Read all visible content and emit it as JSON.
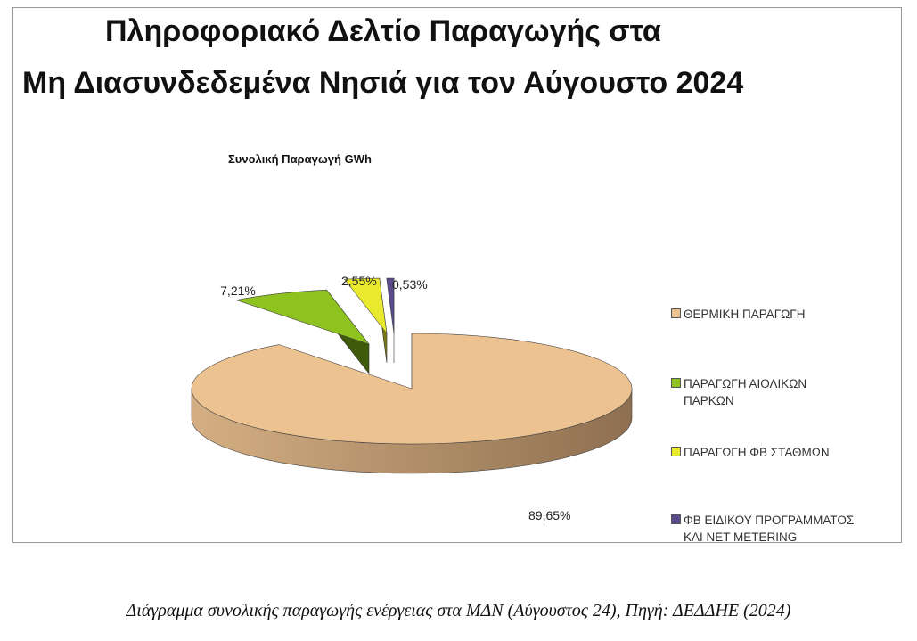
{
  "chart_data": {
    "type": "pie",
    "title": [
      "Πληροφοριακό Δελτίο Παραγωγής στα",
      "Μη Διασυνδεδεμένα Νησιά για τον Αύγουστο 2024"
    ],
    "subtitle": "Συνολική Παραγωγή GWh",
    "legend_position": "right",
    "slices": [
      {
        "name": "ΘΕΡΜΙΚΗ ΠΑΡΑΓΩΓΗ",
        "legend_lines": [
          "ΘΕΡΜΙΚΗ ΠΑΡΑΓΩΓΗ"
        ],
        "value": 89.65,
        "label": "89,65%",
        "color": "#EDC291",
        "side_color": "#8E6F50"
      },
      {
        "name": "ΠΑΡΑΓΩΓΗ ΑΙΟΛΙΚΩΝ ΠΑΡΚΩΝ",
        "legend_lines": [
          "ΠΑΡΑΓΩΓΗ ΑΙΟΛΙΚΩΝ",
          "ΠΑΡΚΩΝ"
        ],
        "value": 7.21,
        "label": "7,21%",
        "color": "#8DC21F",
        "side_color": "#3F5A0A"
      },
      {
        "name": "ΠΑΡΑΓΩΓΗ ΦΒ ΣΤΑΘΜΩΝ",
        "legend_lines": [
          "ΠΑΡΑΓΩΓΗ ΦΒ ΣΤΑΘΜΩΝ"
        ],
        "value": 2.55,
        "label": "2,55%",
        "color": "#E9E92D",
        "side_color": "#7A7A12"
      },
      {
        "name": "ΦΒ ΕΙΔΙΚΟΥ ΠΡΟΓΡΑΜΜΑΤΟΣ ΚΑΙ NET METERING",
        "legend_lines": [
          "ΦΒ ΕΙΔΙΚΟΥ ΠΡΟΓΡΑΜΜΑΤΟΣ",
          "ΚΑΙ NET METERING"
        ],
        "value": 0.53,
        "label": "0,53%",
        "color": "#5A4A8A",
        "side_color": "#2A1F4A"
      }
    ]
  },
  "caption": "Διάγραμμα συνολικής παραγωγής ενέργειας στα ΜΔΝ (Αύγουστος 24), Πηγή: ΔΕΔΔΗΕ (2024)"
}
